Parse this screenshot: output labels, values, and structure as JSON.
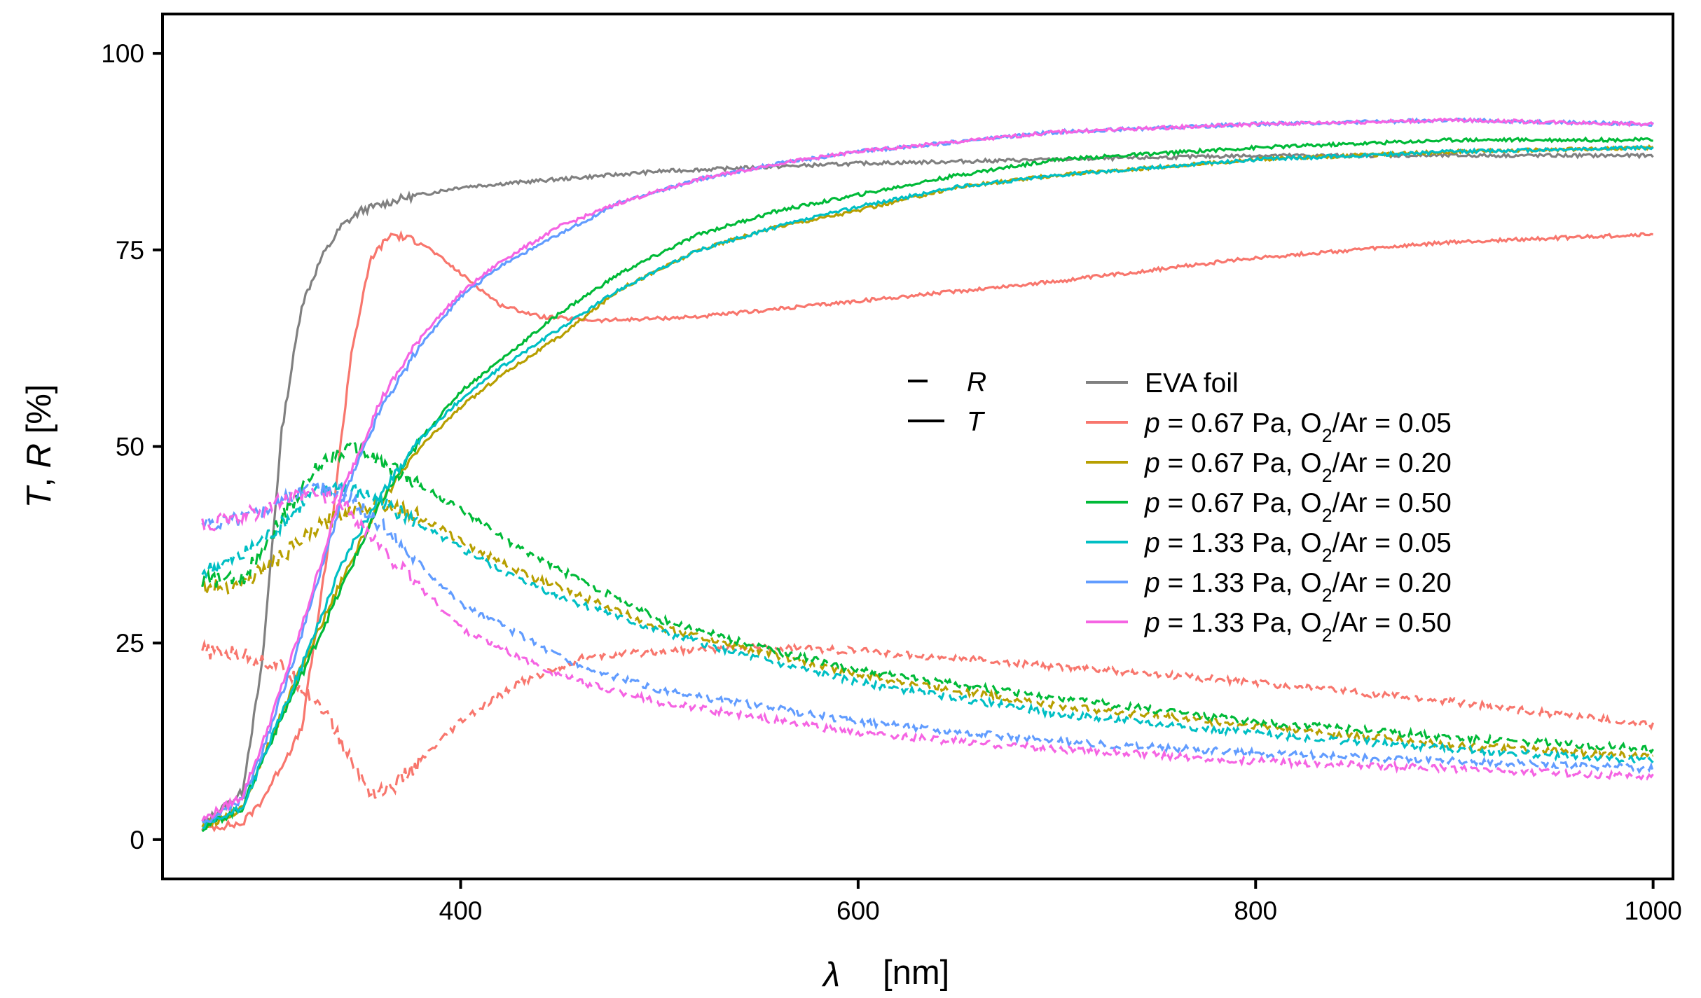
{
  "chart_data": {
    "type": "line",
    "title": "",
    "xlabel_symbol": "λ",
    "xlabel_unit": "[nm]",
    "ylabel_t": "T",
    "ylabel_sep": ", ",
    "ylabel_r": "R",
    "ylabel_unit": " [%]",
    "xlim": [
      250,
      1010
    ],
    "ylim": [
      -5,
      105
    ],
    "xticks": [
      400,
      600,
      800,
      1000
    ],
    "yticks": [
      0,
      25,
      50,
      75,
      100
    ],
    "grid": false,
    "linetype_legend": [
      {
        "dash": "dashed",
        "label": "R"
      },
      {
        "dash": "solid",
        "label": "T"
      }
    ],
    "series": [
      {
        "name": "EVA foil",
        "color": "#808080",
        "p": "",
        "gas": "",
        "T": [
          [
            270,
            2
          ],
          [
            290,
            6
          ],
          [
            300,
            22
          ],
          [
            310,
            52
          ],
          [
            320,
            68
          ],
          [
            330,
            74
          ],
          [
            340,
            78
          ],
          [
            350,
            80
          ],
          [
            370,
            81.5
          ],
          [
            400,
            83
          ],
          [
            450,
            84
          ],
          [
            500,
            85
          ],
          [
            550,
            85.5
          ],
          [
            600,
            86
          ],
          [
            700,
            86.5
          ],
          [
            800,
            87
          ],
          [
            900,
            87
          ],
          [
            1000,
            87
          ]
        ],
        "R": null
      },
      {
        "name": "p = 0.67 Pa, O2/Ar = 0.05",
        "color": "#F8766D",
        "p": "0.67",
        "gas": "0.05",
        "T": [
          [
            270,
            1.5
          ],
          [
            290,
            2
          ],
          [
            300,
            5
          ],
          [
            320,
            14
          ],
          [
            335,
            40
          ],
          [
            345,
            62
          ],
          [
            355,
            74
          ],
          [
            365,
            77
          ],
          [
            380,
            76
          ],
          [
            400,
            72
          ],
          [
            420,
            68
          ],
          [
            440,
            66.5
          ],
          [
            470,
            66
          ],
          [
            520,
            66.5
          ],
          [
            560,
            67.5
          ],
          [
            600,
            68.5
          ],
          [
            700,
            71
          ],
          [
            800,
            74
          ],
          [
            900,
            76
          ],
          [
            1000,
            77
          ]
        ],
        "R": [
          [
            270,
            24
          ],
          [
            290,
            23.5
          ],
          [
            310,
            22
          ],
          [
            330,
            17
          ],
          [
            345,
            10
          ],
          [
            355,
            6
          ],
          [
            365,
            6.5
          ],
          [
            380,
            10
          ],
          [
            400,
            15
          ],
          [
            430,
            20
          ],
          [
            460,
            23
          ],
          [
            500,
            24
          ],
          [
            550,
            24.5
          ],
          [
            600,
            24
          ],
          [
            700,
            22
          ],
          [
            800,
            20
          ],
          [
            900,
            17.5
          ],
          [
            1000,
            14.5
          ]
        ]
      },
      {
        "name": "p = 0.67 Pa, O2/Ar = 0.20",
        "color": "#B79F00",
        "p": "0.67",
        "gas": "0.20",
        "T": [
          [
            270,
            1.5
          ],
          [
            290,
            4
          ],
          [
            300,
            10
          ],
          [
            320,
            22
          ],
          [
            340,
            33
          ],
          [
            360,
            43
          ],
          [
            380,
            50
          ],
          [
            400,
            55
          ],
          [
            420,
            59
          ],
          [
            450,
            64
          ],
          [
            480,
            70
          ],
          [
            520,
            75
          ],
          [
            560,
            78
          ],
          [
            600,
            80
          ],
          [
            650,
            83
          ],
          [
            700,
            84.5
          ],
          [
            800,
            86.5
          ],
          [
            900,
            87.5
          ],
          [
            1000,
            88
          ]
        ],
        "R": [
          [
            270,
            32
          ],
          [
            290,
            32.5
          ],
          [
            310,
            36
          ],
          [
            330,
            40
          ],
          [
            345,
            42
          ],
          [
            360,
            43
          ],
          [
            380,
            41
          ],
          [
            400,
            38
          ],
          [
            430,
            34
          ],
          [
            460,
            31
          ],
          [
            500,
            27
          ],
          [
            550,
            24
          ],
          [
            600,
            21
          ],
          [
            700,
            17
          ],
          [
            800,
            14.5
          ],
          [
            900,
            12
          ],
          [
            1000,
            10.5
          ]
        ]
      },
      {
        "name": "p = 0.67 Pa, O2/Ar = 0.50",
        "color": "#00BA38",
        "p": "0.67",
        "gas": "0.50",
        "T": [
          [
            270,
            1.5
          ],
          [
            290,
            4
          ],
          [
            300,
            10
          ],
          [
            320,
            21
          ],
          [
            340,
            32
          ],
          [
            360,
            43
          ],
          [
            380,
            51
          ],
          [
            400,
            57
          ],
          [
            420,
            61
          ],
          [
            450,
            67
          ],
          [
            480,
            72
          ],
          [
            520,
            77
          ],
          [
            560,
            80
          ],
          [
            600,
            82
          ],
          [
            650,
            84.5
          ],
          [
            700,
            86.5
          ],
          [
            800,
            88
          ],
          [
            900,
            89
          ],
          [
            1000,
            89
          ]
        ],
        "R": [
          [
            270,
            33
          ],
          [
            290,
            33
          ],
          [
            310,
            41
          ],
          [
            330,
            48
          ],
          [
            345,
            50
          ],
          [
            360,
            48
          ],
          [
            380,
            45
          ],
          [
            400,
            42
          ],
          [
            430,
            37
          ],
          [
            460,
            33
          ],
          [
            500,
            28
          ],
          [
            550,
            24.5
          ],
          [
            600,
            21.5
          ],
          [
            700,
            18
          ],
          [
            800,
            15
          ],
          [
            900,
            13
          ],
          [
            1000,
            11.5
          ]
        ]
      },
      {
        "name": "p = 1.33 Pa, O2/Ar = 0.05",
        "color": "#00BFC4",
        "p": "1.33",
        "gas": "0.05",
        "T": [
          [
            270,
            1.5
          ],
          [
            290,
            4
          ],
          [
            300,
            10
          ],
          [
            320,
            22
          ],
          [
            340,
            35
          ],
          [
            360,
            44
          ],
          [
            380,
            51
          ],
          [
            400,
            56
          ],
          [
            420,
            60
          ],
          [
            450,
            65
          ],
          [
            480,
            70
          ],
          [
            520,
            75
          ],
          [
            560,
            78
          ],
          [
            600,
            80.5
          ],
          [
            650,
            83
          ],
          [
            700,
            84.5
          ],
          [
            800,
            86.5
          ],
          [
            900,
            87.5
          ],
          [
            1000,
            88
          ]
        ],
        "R": [
          [
            270,
            34
          ],
          [
            290,
            36
          ],
          [
            310,
            40
          ],
          [
            325,
            44
          ],
          [
            340,
            45
          ],
          [
            360,
            43
          ],
          [
            380,
            40
          ],
          [
            400,
            37
          ],
          [
            430,
            33
          ],
          [
            460,
            30
          ],
          [
            500,
            26.5
          ],
          [
            550,
            23
          ],
          [
            600,
            20
          ],
          [
            700,
            16
          ],
          [
            800,
            13.5
          ],
          [
            900,
            11.5
          ],
          [
            1000,
            10
          ]
        ]
      },
      {
        "name": "p = 1.33 Pa, O2/Ar = 0.20",
        "color": "#619CFF",
        "p": "1.33",
        "gas": "0.20",
        "T": [
          [
            270,
            2
          ],
          [
            290,
            5
          ],
          [
            300,
            11
          ],
          [
            320,
            26
          ],
          [
            340,
            43
          ],
          [
            360,
            55
          ],
          [
            380,
            63
          ],
          [
            400,
            69
          ],
          [
            420,
            73
          ],
          [
            450,
            77
          ],
          [
            480,
            81
          ],
          [
            520,
            84
          ],
          [
            560,
            86
          ],
          [
            600,
            87.5
          ],
          [
            700,
            90
          ],
          [
            800,
            91
          ],
          [
            900,
            91.5
          ],
          [
            1000,
            91
          ]
        ],
        "R": [
          [
            270,
            40
          ],
          [
            290,
            41
          ],
          [
            310,
            43
          ],
          [
            325,
            45
          ],
          [
            340,
            44
          ],
          [
            360,
            40
          ],
          [
            380,
            35
          ],
          [
            400,
            30
          ],
          [
            430,
            26
          ],
          [
            460,
            22
          ],
          [
            500,
            19
          ],
          [
            550,
            17
          ],
          [
            600,
            15
          ],
          [
            700,
            12.5
          ],
          [
            800,
            11
          ],
          [
            900,
            10
          ],
          [
            1000,
            9
          ]
        ]
      },
      {
        "name": "p = 1.33 Pa, O2/Ar = 0.50",
        "color": "#F564E3",
        "p": "1.33",
        "gas": "0.50",
        "T": [
          [
            270,
            2.5
          ],
          [
            290,
            5.5
          ],
          [
            300,
            12
          ],
          [
            320,
            27
          ],
          [
            340,
            44
          ],
          [
            360,
            56
          ],
          [
            380,
            64
          ],
          [
            400,
            69.5
          ],
          [
            420,
            73.5
          ],
          [
            450,
            78
          ],
          [
            480,
            81
          ],
          [
            520,
            84
          ],
          [
            560,
            86
          ],
          [
            600,
            87.5
          ],
          [
            700,
            90
          ],
          [
            800,
            91
          ],
          [
            900,
            91.5
          ],
          [
            1000,
            91
          ]
        ],
        "R": [
          [
            270,
            40
          ],
          [
            290,
            41
          ],
          [
            310,
            43
          ],
          [
            325,
            44
          ],
          [
            340,
            43
          ],
          [
            360,
            37
          ],
          [
            380,
            32
          ],
          [
            400,
            27
          ],
          [
            430,
            23
          ],
          [
            460,
            20
          ],
          [
            500,
            17.5
          ],
          [
            550,
            15.5
          ],
          [
            600,
            13.5
          ],
          [
            700,
            11.5
          ],
          [
            800,
            10
          ],
          [
            900,
            9
          ],
          [
            1000,
            8
          ]
        ]
      }
    ]
  }
}
